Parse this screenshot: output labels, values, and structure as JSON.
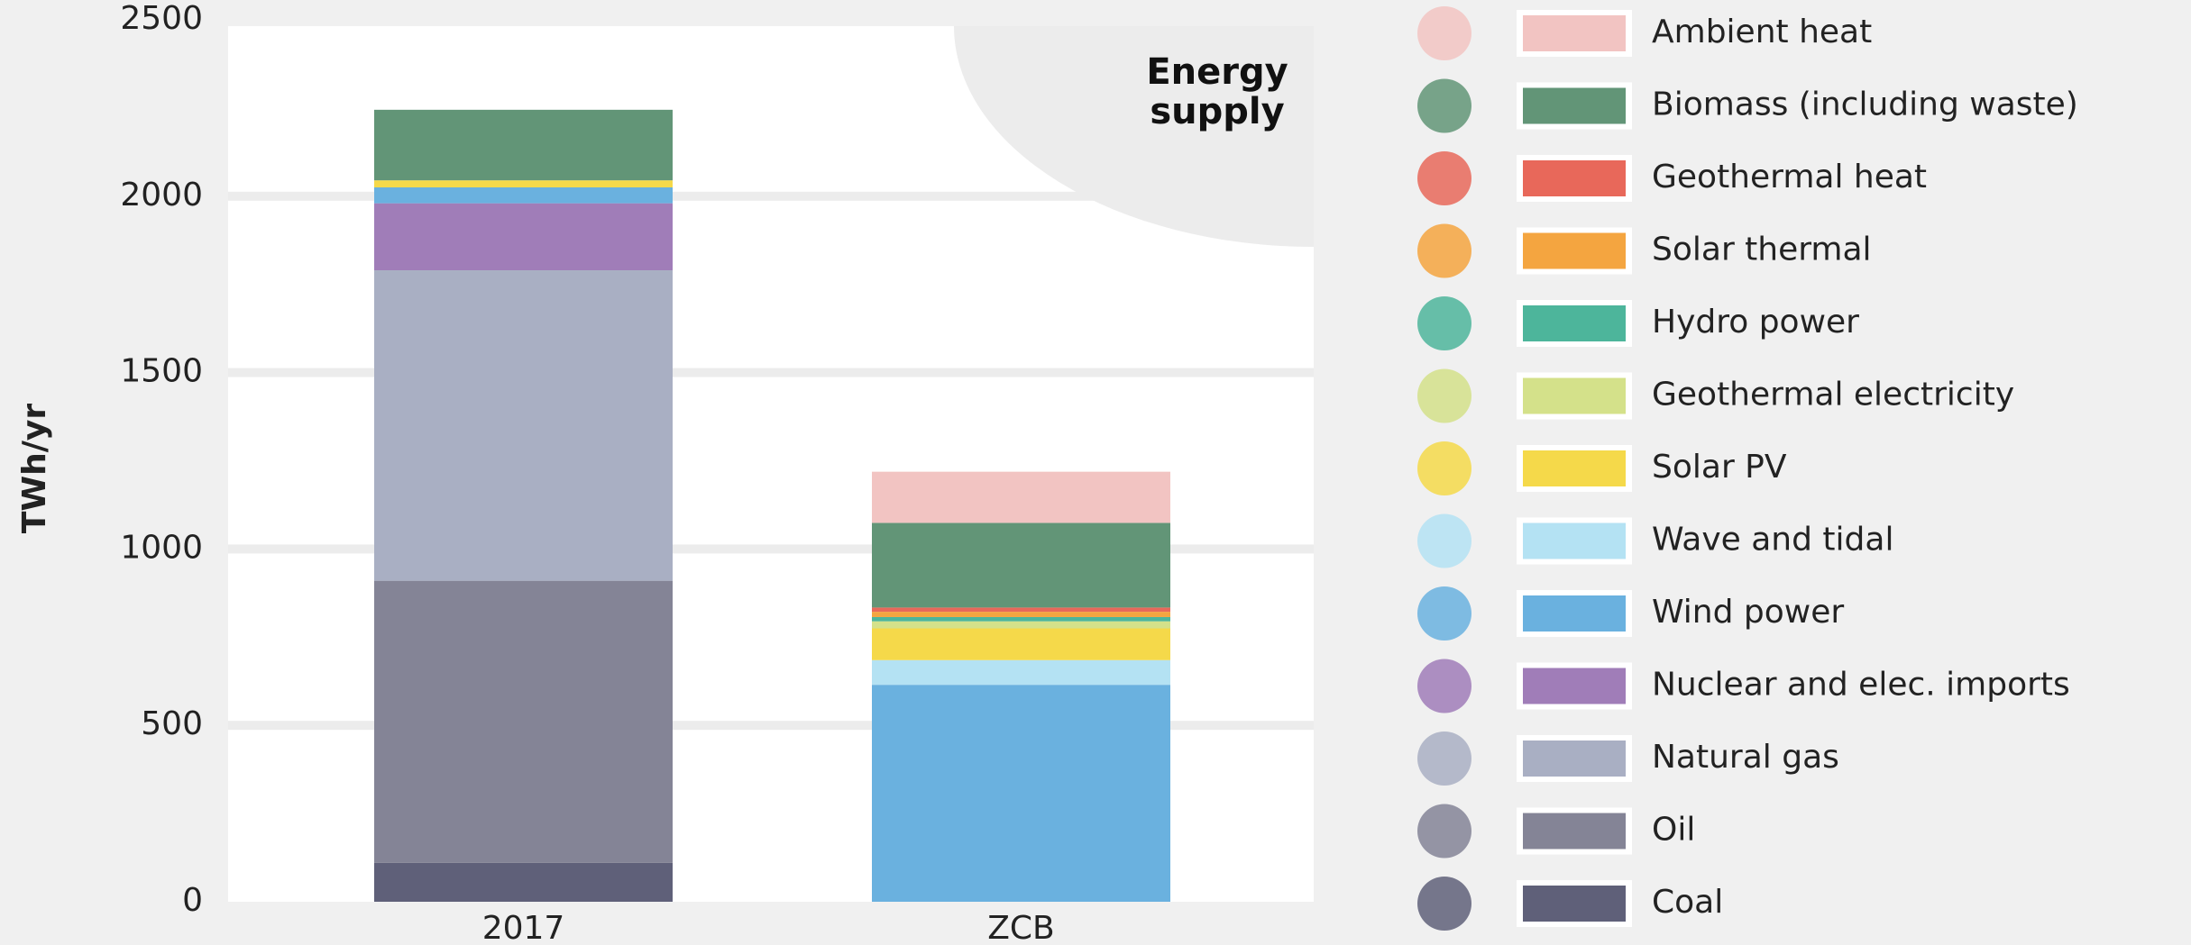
{
  "chart_data": {
    "type": "stacked_bar",
    "title": "Energy supply",
    "y_label": "TWh/yr",
    "categories": [
      "2017",
      "ZCB"
    ],
    "ylim": [
      0,
      2500
    ],
    "yticks": [
      0,
      500,
      1000,
      1500,
      2000,
      2500
    ],
    "grid": true,
    "legend": "right",
    "series": [
      {
        "name": "Coal",
        "color": "#5f6079",
        "values": [
          110,
          0
        ]
      },
      {
        "name": "Oil",
        "color": "#848496",
        "values": [
          800,
          0
        ]
      },
      {
        "name": "Natural gas",
        "color": "#a9afc3",
        "values": [
          880,
          0
        ]
      },
      {
        "name": "Nuclear and elec. imports",
        "color": "#a07db8",
        "values": [
          190,
          0
        ]
      },
      {
        "name": "Wind power",
        "color": "#6ab1df",
        "values": [
          45,
          615
        ]
      },
      {
        "name": "Wave and tidal",
        "color": "#b4e2f3",
        "values": [
          0,
          70
        ]
      },
      {
        "name": "Solar PV",
        "color": "#f5d94a",
        "values": [
          20,
          90
        ]
      },
      {
        "name": "Geothermal electricity",
        "color": "#d4e18a",
        "values": [
          0,
          20
        ]
      },
      {
        "name": "Hydro power",
        "color": "#4db59b",
        "values": [
          0,
          12
        ]
      },
      {
        "name": "Solar thermal",
        "color": "#f4a540",
        "values": [
          0,
          15
        ]
      },
      {
        "name": "Geothermal heat",
        "color": "#e8685a",
        "values": [
          0,
          12
        ]
      },
      {
        "name": "Biomass (including waste)",
        "color": "#629577",
        "values": [
          200,
          240
        ]
      },
      {
        "name": "Ambient heat",
        "color": "#f2c4c2",
        "values": [
          0,
          145
        ]
      }
    ]
  }
}
